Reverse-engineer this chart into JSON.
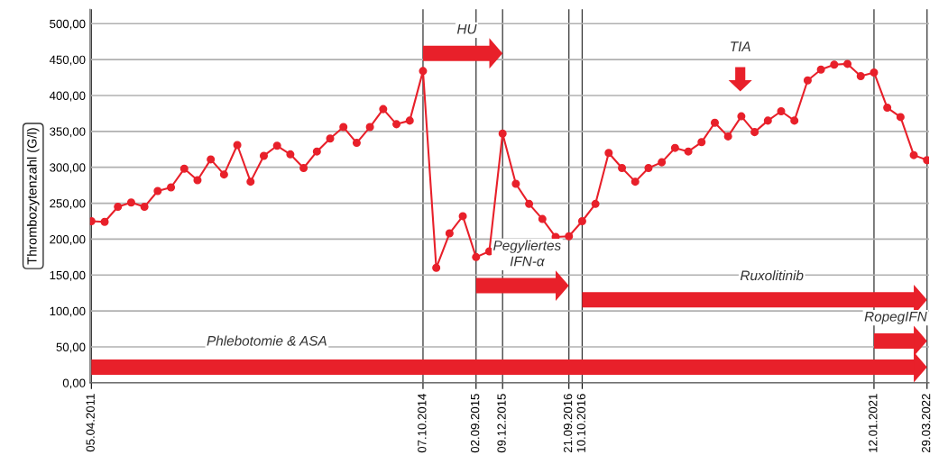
{
  "chart_data": {
    "type": "line",
    "ylabel": "Thrombozytenzahl (G/l)",
    "categories": [
      "05.04.2011",
      null,
      null,
      null,
      null,
      null,
      null,
      null,
      null,
      null,
      null,
      null,
      null,
      null,
      null,
      null,
      null,
      null,
      null,
      null,
      null,
      null,
      null,
      null,
      null,
      "07.10.2014",
      null,
      null,
      null,
      "02.09.2015",
      null,
      "09.12.2015",
      null,
      null,
      null,
      null,
      "21.09.2016",
      "10.10.2016",
      null,
      null,
      null,
      null,
      null,
      null,
      null,
      null,
      null,
      null,
      null,
      null,
      null,
      null,
      null,
      null,
      null,
      null,
      null,
      null,
      null,
      "12.01.2021",
      null,
      null,
      null,
      "29.03.2022"
    ],
    "series": [
      {
        "color": "#e8202a",
        "values": [
          225,
          224,
          245,
          251,
          245,
          267,
          272,
          298,
          282,
          311,
          290,
          331,
          280,
          316,
          330,
          318,
          299,
          322,
          340,
          356,
          334,
          356,
          381,
          360,
          365,
          434,
          160,
          208,
          232,
          175,
          183,
          347,
          277,
          249,
          228,
          203,
          204,
          225,
          249,
          320,
          299,
          280,
          299,
          307,
          327,
          322,
          335,
          362,
          343,
          371,
          349,
          365,
          378,
          365,
          421,
          436,
          443,
          444,
          427,
          432,
          383,
          370,
          317,
          310
        ]
      }
    ],
    "ylim": [
      0,
      520
    ],
    "yticks": [
      {
        "value": 0,
        "label": "0,00"
      },
      {
        "value": 50,
        "label": "50,00"
      },
      {
        "value": 100,
        "label": "100,00"
      },
      {
        "value": 150,
        "label": "150,00"
      },
      {
        "value": 200,
        "label": "200,00"
      },
      {
        "value": 250,
        "label": "250,00"
      },
      {
        "value": 300,
        "label": "300,00"
      },
      {
        "value": 350,
        "label": "350,00"
      },
      {
        "value": 400,
        "label": "400,00"
      },
      {
        "value": 450,
        "label": "450,00"
      },
      {
        "value": 500,
        "label": "500,00"
      }
    ],
    "grid": true,
    "marker": "circle",
    "line_style": "solid",
    "bands": [
      {
        "axis": "x",
        "from": "05.04.2011",
        "to": "29.03.2022",
        "label": "Phlebotomie & ASA",
        "color": "#e8202a"
      },
      {
        "axis": "x",
        "from": "12.01.2021",
        "to": "29.03.2022",
        "label": "RopegIFN",
        "color": "#e8202a"
      },
      {
        "axis": "x",
        "from": "10.10.2016",
        "to": "29.03.2022",
        "label": "Ruxolitinib",
        "color": "#e8202a"
      },
      {
        "axis": "x",
        "from": "02.09.2015",
        "to": "21.09.2016",
        "label": "Pegyliertes\nIFN-α",
        "color": "#e8202a"
      },
      {
        "axis": "x",
        "from": "07.10.2014",
        "to": "09.12.2015",
        "label": "HU",
        "color": "#e8202a"
      }
    ],
    "annotations": [
      "TIA"
    ]
  }
}
